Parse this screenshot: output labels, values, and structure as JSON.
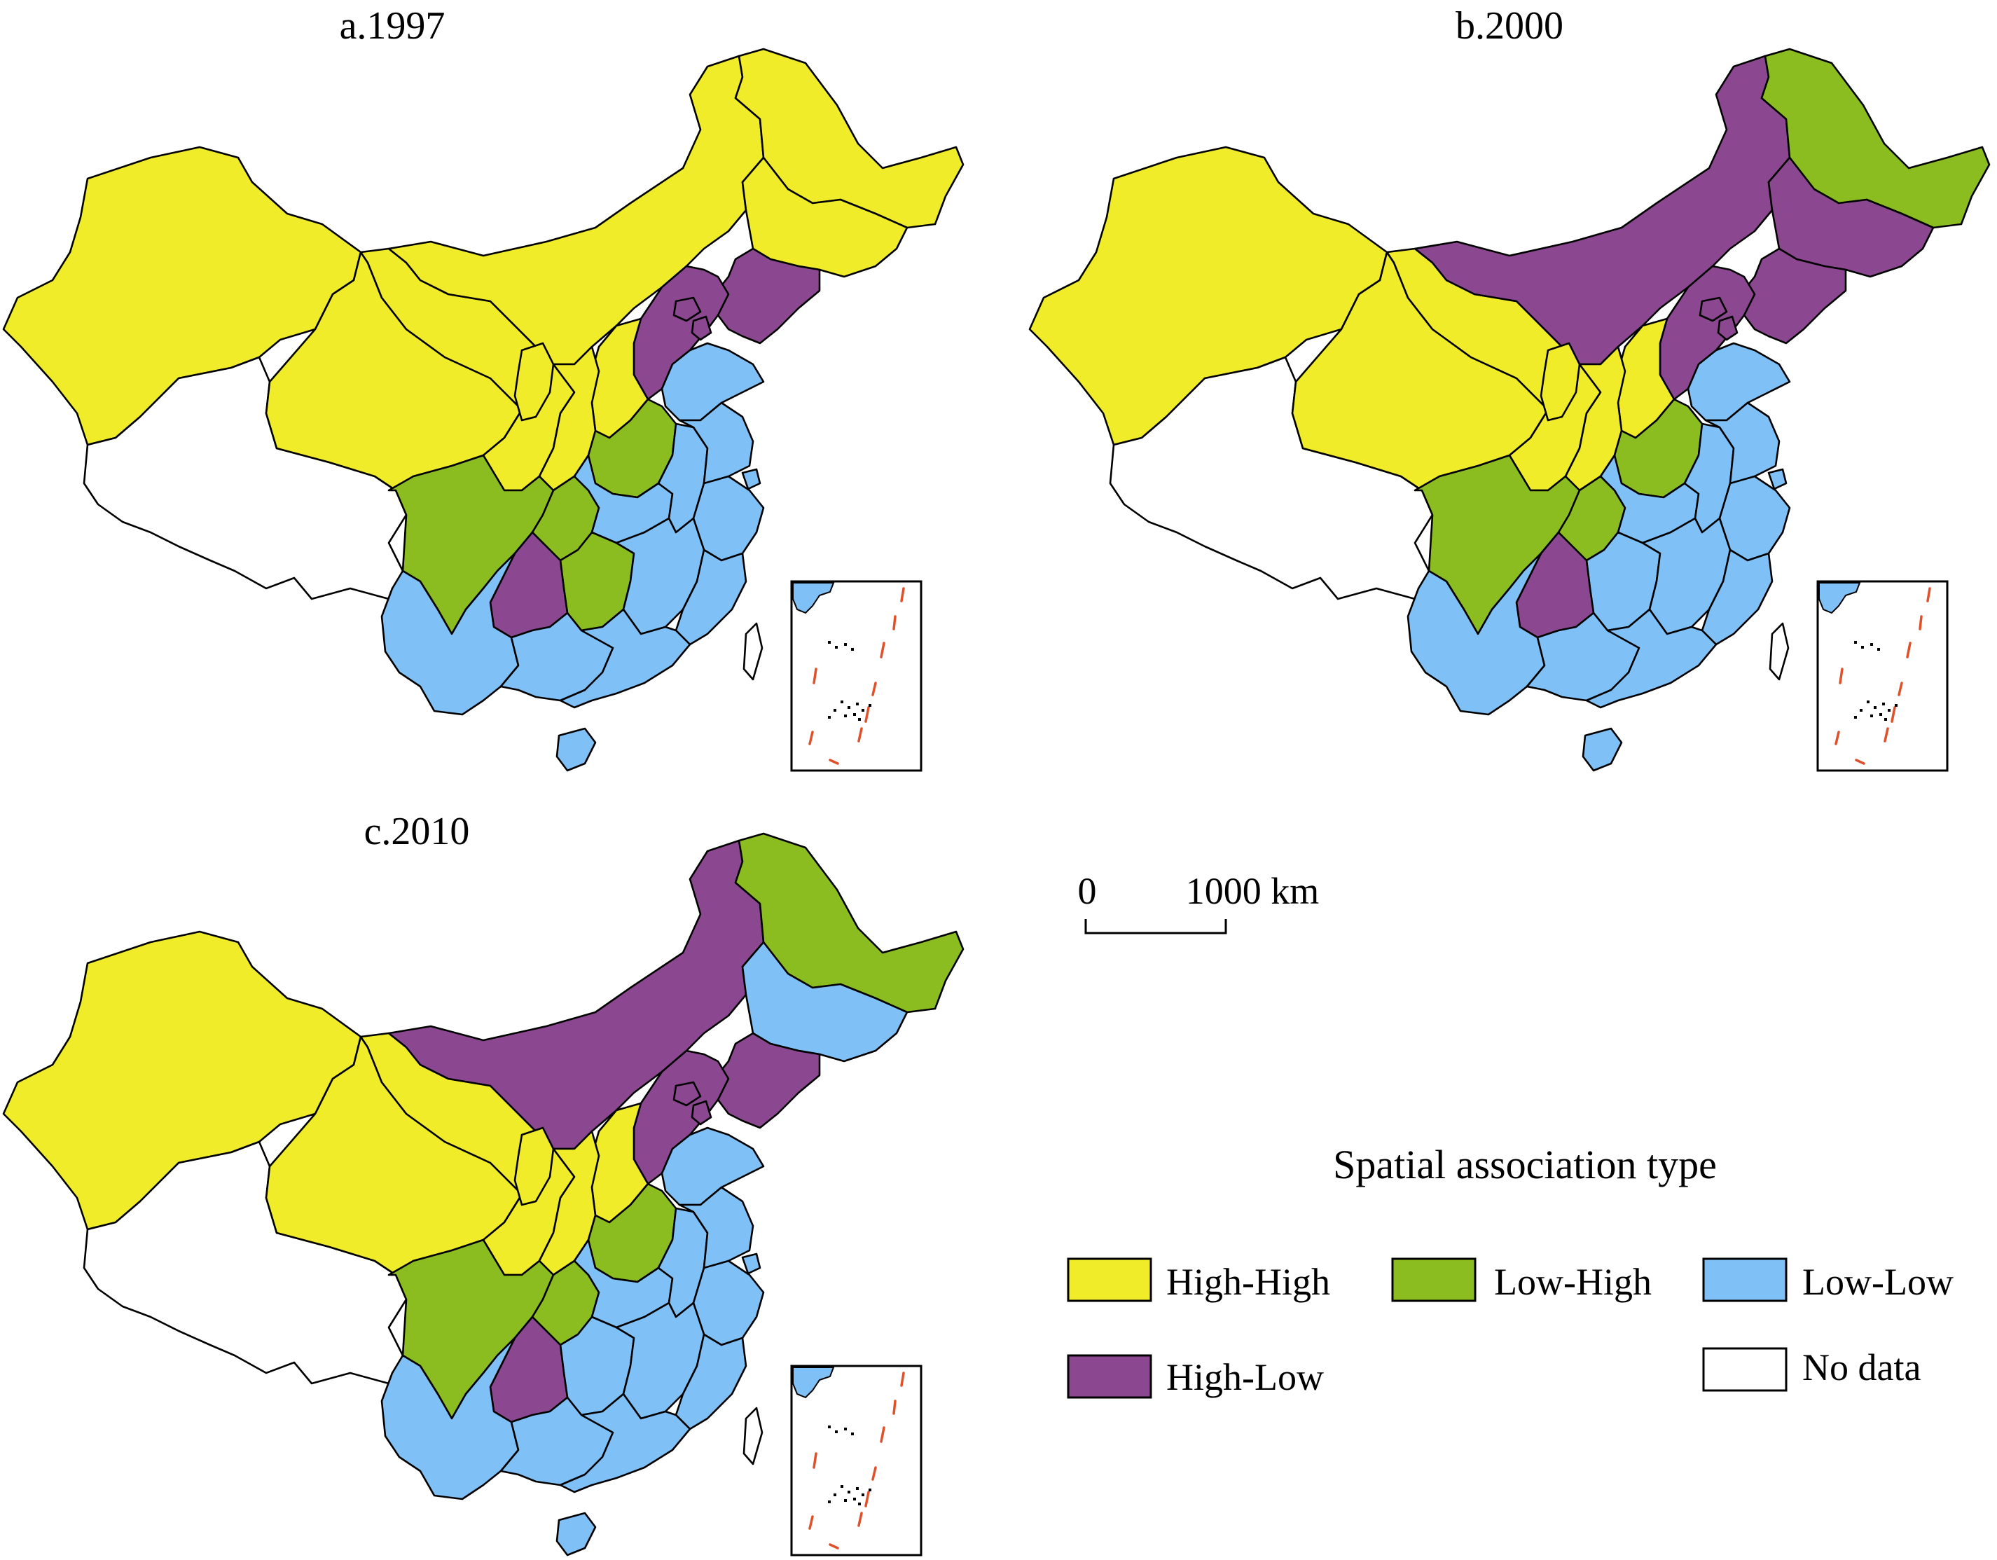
{
  "figure": {
    "legend": {
      "title": "Spatial association type",
      "items": [
        {
          "key": "HH",
          "label": "High-High",
          "color": "#f0ec2a"
        },
        {
          "key": "LH",
          "label": "Low-High",
          "color": "#8bbd20"
        },
        {
          "key": "LL",
          "label": "Low-Low",
          "color": "#7fc0f7"
        },
        {
          "key": "HL",
          "label": "High-Low",
          "color": "#8b4890"
        },
        {
          "key": "ND",
          "label": "No data",
          "color": "#ffffff"
        }
      ]
    },
    "scale_bar": {
      "start_label": "0",
      "end_label": "1000 km"
    },
    "inset": {
      "name": "South China Sea islands",
      "dash_color": "#e0502a"
    },
    "panels": [
      {
        "title": "a.1997",
        "provinces": {
          "xinjiang": "HH",
          "tibet": "ND",
          "qinghai": "HH",
          "gansu": "HH",
          "inner_mongolia": "HH",
          "heilongjiang": "HH",
          "jilin": "HH",
          "liaoning": "HL",
          "hebei": "HL",
          "beijing": "HL",
          "tianjin": "HL",
          "shanxi": "HH",
          "shaanxi": "HH",
          "ningxia": "HH",
          "shandong": "LL",
          "henan": "LH",
          "sichuan": "LH",
          "chongqing": "LH",
          "hubei": "LL",
          "anhui": "LL",
          "jiangsu": "LL",
          "shanghai": "LL",
          "zhejiang": "LL",
          "hunan": "LH",
          "jiangxi": "LL",
          "fujian": "LL",
          "guizhou": "HL",
          "yunnan": "LL",
          "guangxi": "LL",
          "guangdong": "LL",
          "hainan": "LL",
          "taiwan": "ND"
        }
      },
      {
        "title": "b.2000",
        "provinces": {
          "xinjiang": "HH",
          "tibet": "ND",
          "qinghai": "HH",
          "gansu": "HH",
          "inner_mongolia": "HL",
          "heilongjiang": "LH",
          "jilin": "HL",
          "liaoning": "HL",
          "hebei": "HL",
          "beijing": "HL",
          "tianjin": "HL",
          "shanxi": "HH",
          "shaanxi": "HH",
          "ningxia": "HH",
          "shandong": "LL",
          "henan": "LH",
          "sichuan": "LH",
          "chongqing": "LH",
          "hubei": "LL",
          "anhui": "LL",
          "jiangsu": "LL",
          "shanghai": "LL",
          "zhejiang": "LL",
          "hunan": "LL",
          "jiangxi": "LL",
          "fujian": "LL",
          "guizhou": "HL",
          "yunnan": "LL",
          "guangxi": "LL",
          "guangdong": "LL",
          "hainan": "LL",
          "taiwan": "ND"
        }
      },
      {
        "title": "c.2010",
        "provinces": {
          "xinjiang": "HH",
          "tibet": "ND",
          "qinghai": "HH",
          "gansu": "HH",
          "inner_mongolia": "HL",
          "heilongjiang": "LH",
          "jilin": "LL",
          "liaoning": "HL",
          "hebei": "HL",
          "beijing": "HL",
          "tianjin": "HL",
          "shanxi": "HH",
          "shaanxi": "HH",
          "ningxia": "HH",
          "shandong": "LL",
          "henan": "LH",
          "sichuan": "LH",
          "chongqing": "LH",
          "hubei": "LL",
          "anhui": "LL",
          "jiangsu": "LL",
          "shanghai": "LL",
          "zhejiang": "LL",
          "hunan": "LL",
          "jiangxi": "LL",
          "fujian": "LL",
          "guizhou": "HL",
          "yunnan": "LL",
          "guangxi": "LL",
          "guangdong": "LL",
          "hainan": "LL",
          "taiwan": "ND"
        }
      }
    ]
  }
}
